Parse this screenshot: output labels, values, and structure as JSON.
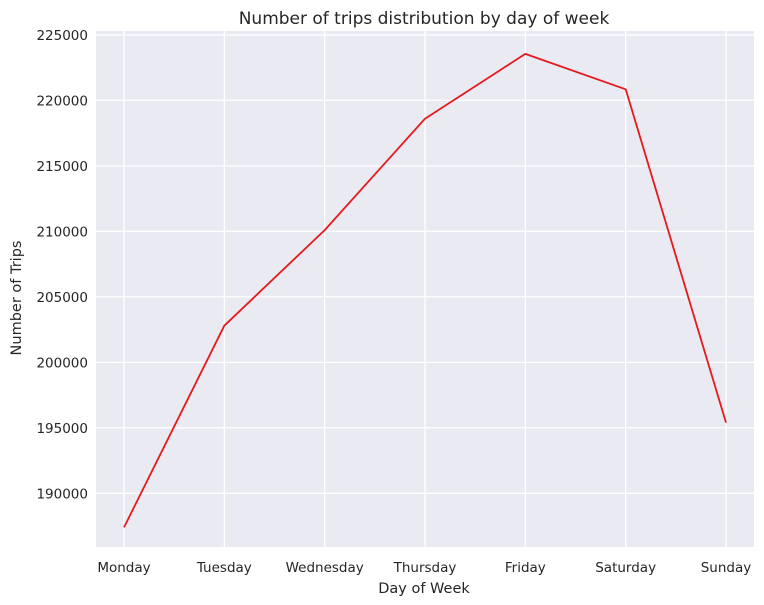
{
  "chart_data": {
    "type": "line",
    "title": "Number of trips distribution by day of week",
    "xlabel": "Day of Week",
    "ylabel": "Number of Trips",
    "categories": [
      "Monday",
      "Tuesday",
      "Wednesday",
      "Thursday",
      "Friday",
      "Saturday",
      "Sunday"
    ],
    "series": [
      {
        "values": [
          187400,
          202800,
          210100,
          218600,
          223550,
          220850,
          195400
        ]
      }
    ],
    "ylim": [
      185900,
      225300
    ],
    "yticks": [
      190000,
      195000,
      200000,
      205000,
      210000,
      215000,
      220000,
      225000
    ],
    "ytick_labels": [
      "190000",
      "195000",
      "200000",
      "205000",
      "210000",
      "215000",
      "220000",
      "225000"
    ],
    "grid": true,
    "background_color": "#eaeaf2",
    "line_color": "#e41a1c"
  }
}
